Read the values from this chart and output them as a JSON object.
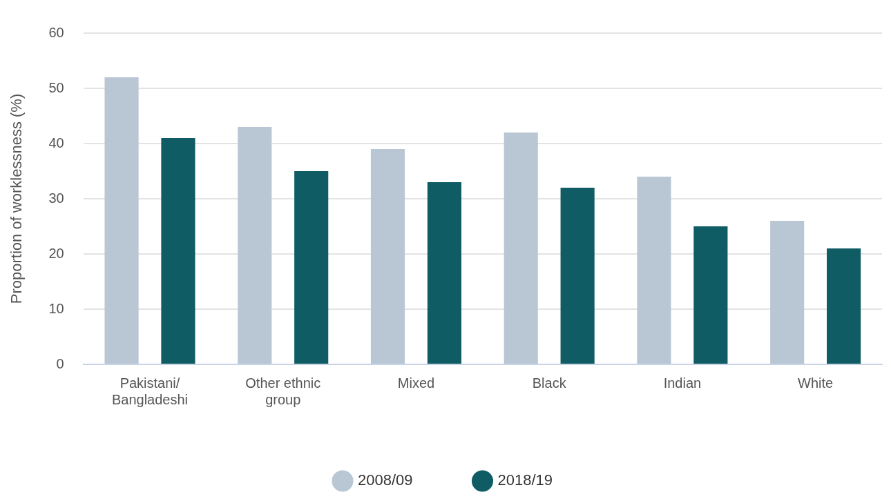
{
  "chart_data": {
    "type": "bar",
    "ylabel": "Proportion of worklessness (%)",
    "categories": [
      "Pakistani/Bangladeshi",
      "Other ethnic group",
      "Mixed",
      "Black",
      "Indian",
      "White"
    ],
    "series": [
      {
        "name": "2008/09",
        "color": "#b9c7d4",
        "values": [
          52,
          43,
          39,
          42,
          34,
          26
        ]
      },
      {
        "name": "2018/19",
        "color": "#0f5c64",
        "values": [
          41,
          35,
          33,
          32,
          25,
          21
        ]
      }
    ],
    "ylim": [
      0,
      60
    ],
    "yticks": [
      0,
      10,
      20,
      30,
      40,
      50,
      60
    ],
    "grid": "y",
    "legend": "bottom"
  }
}
